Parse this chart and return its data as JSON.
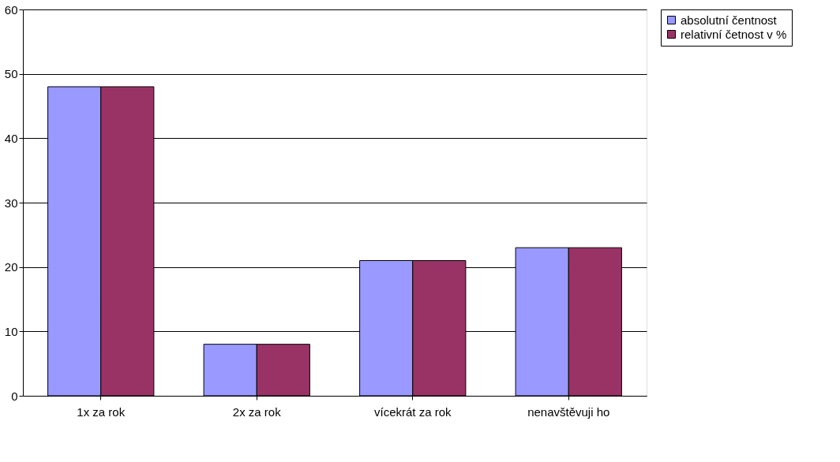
{
  "chart_data": {
    "type": "bar",
    "categories": [
      "1x za rok",
      "2x za rok",
      "vícekrát za rok",
      "nenavštěvuji ho"
    ],
    "series": [
      {
        "name": "absolutní čentnost",
        "color": "#9999ff",
        "values": [
          48,
          8,
          21,
          23
        ]
      },
      {
        "name": "relativní četnost v %",
        "color": "#993366",
        "values": [
          48,
          8,
          21,
          23
        ]
      }
    ],
    "ylim": [
      0,
      60
    ],
    "yticks": [
      0,
      10,
      20,
      30,
      40,
      50,
      60
    ],
    "grid": "y",
    "legend": "right"
  }
}
